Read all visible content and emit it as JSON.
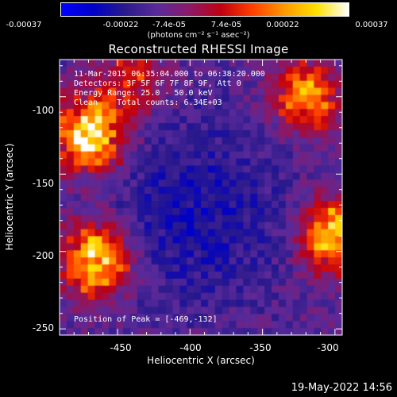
{
  "chart_data": {
    "type": "heatmap",
    "title": "Reconstructed RHESSI Image",
    "xlabel": "Heliocentric X (arcsec)",
    "ylabel": "Heliocentric Y (arcsec)",
    "xlim": [
      -490,
      -295
    ],
    "ylim": [
      -254,
      -76
    ],
    "x_ticks": [
      "-450",
      "-400",
      "-350",
      "-300"
    ],
    "x_tick_values": [
      -450,
      -400,
      -350,
      -300
    ],
    "y_ticks": [
      "-100",
      "-150",
      "-200",
      "-250"
    ],
    "y_tick_values": [
      -100,
      -150,
      -200,
      -250
    ],
    "colorbar": {
      "min": -0.00037,
      "max": 0.00037,
      "ticks": [
        "-0.00037",
        "-0.00022",
        "-7.4e-05",
        "7.4e-05",
        "0.00022",
        "0.00037"
      ],
      "unit": "(photons cm⁻² s⁻¹ asec⁻²)",
      "colormap": [
        "#0000ff",
        "#0000c8",
        "#2a1a8c",
        "#5a2a9a",
        "#8a1a6a",
        "#c00010",
        "#ff4000",
        "#ff9a00",
        "#ffe000",
        "#ffffff"
      ]
    },
    "annotations": {
      "time_range": "11-Mar-2015 06:35:04.000 to 06:38:20.000",
      "detectors": "Detectors: 3F 5F 6F 7F 8F 9F, Att 0",
      "energy": "Energy Range: 25.0 - 50.0 keV",
      "clean": "Clean    Total counts: 6.34E+03",
      "peak": "Position of Peak = [-469,-132]"
    },
    "sources": [
      {
        "x": -470,
        "y": -125,
        "intensity": 0.00037
      },
      {
        "x": -465,
        "y": -205,
        "intensity": 0.00035
      },
      {
        "x": -300,
        "y": -190,
        "intensity": 0.00033
      },
      {
        "x": -320,
        "y": -100,
        "intensity": 0.00025
      },
      {
        "x": -440,
        "y": -90,
        "intensity": 0.00015
      }
    ]
  },
  "footer": {
    "date": "19-May-2022 14:56"
  }
}
